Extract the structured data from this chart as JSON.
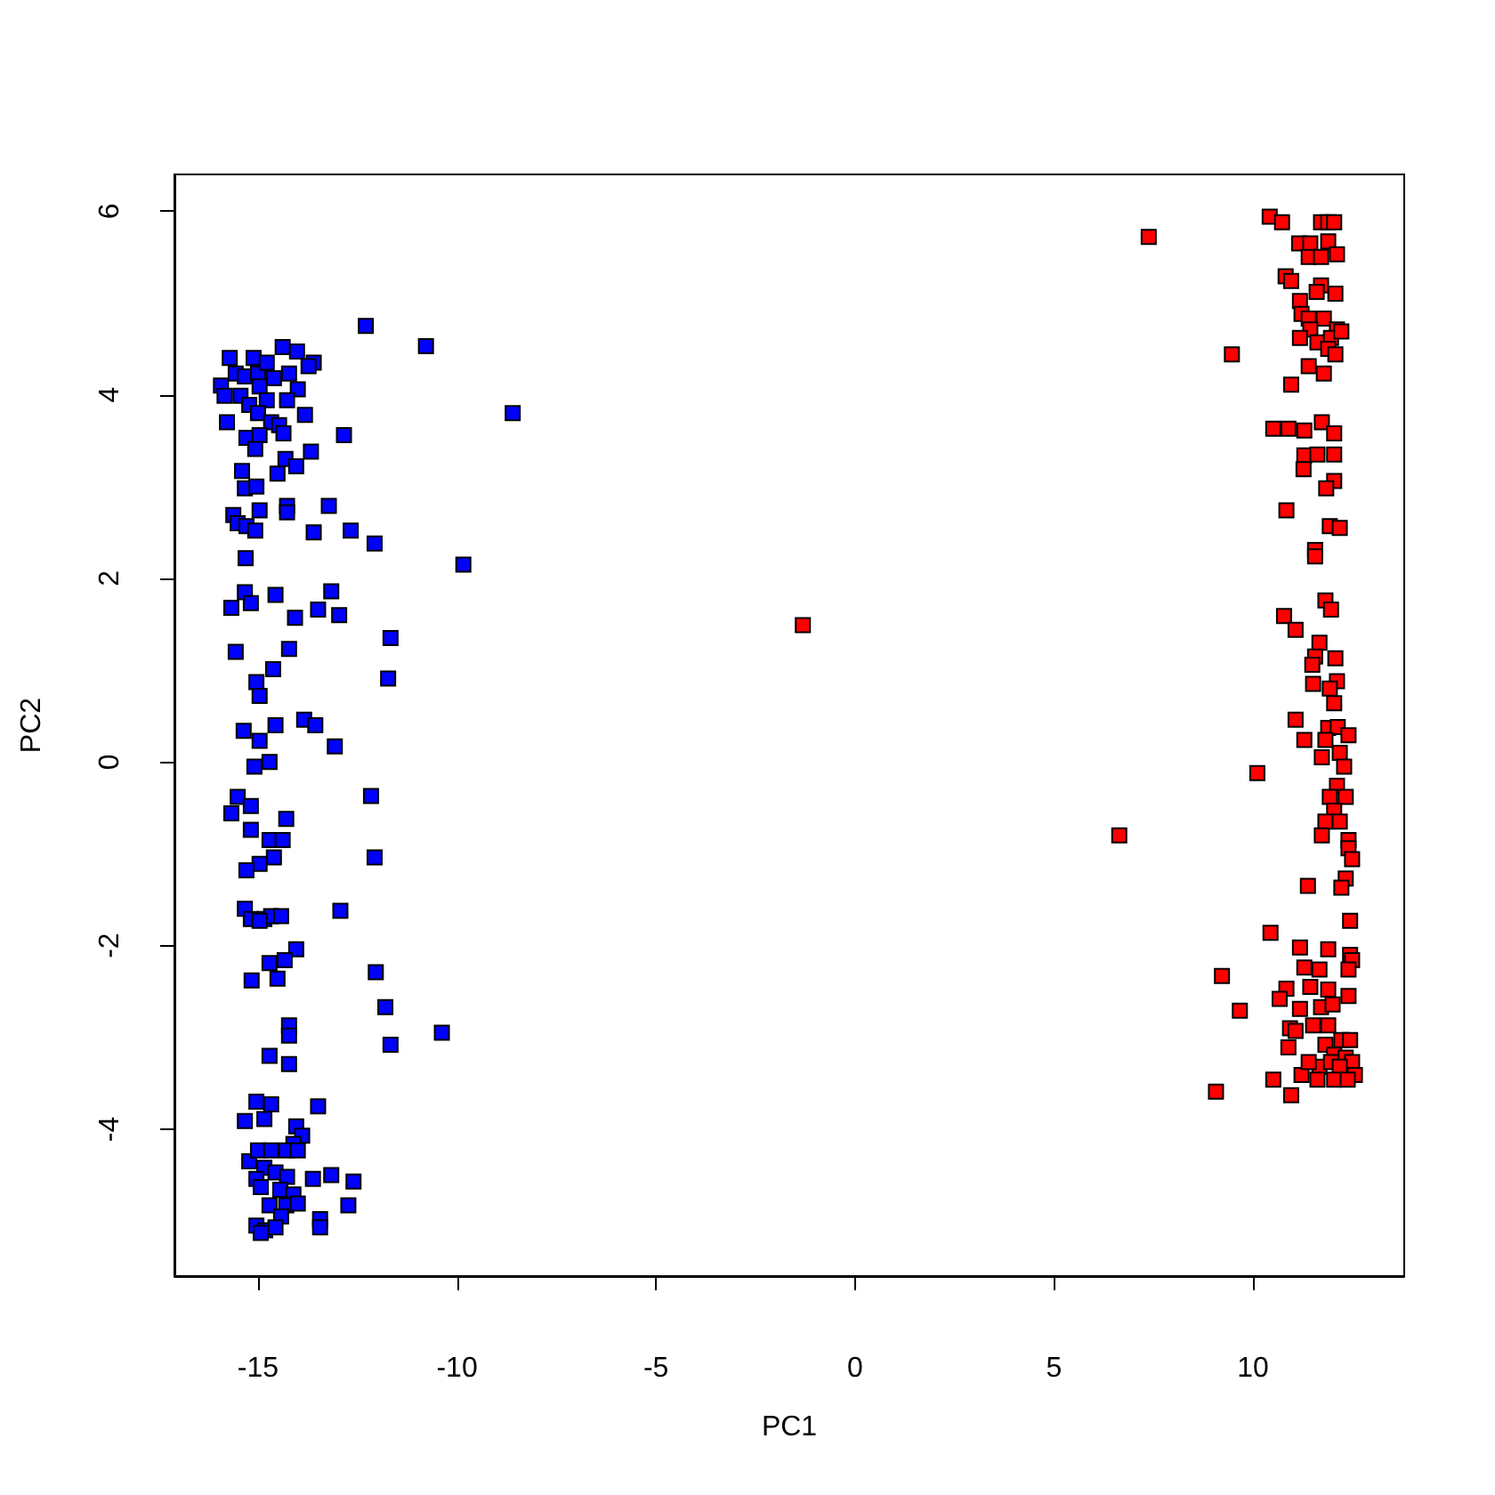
{
  "chart_data": {
    "type": "scatter",
    "xlabel": "PC1",
    "ylabel": "PC2",
    "xlim": [
      -17.1,
      13.8
    ],
    "ylim": [
      -5.6,
      6.4
    ],
    "xticks": [
      -15,
      -10,
      -5,
      0,
      5,
      10
    ],
    "yticks": [
      -4,
      -2,
      0,
      2,
      4,
      6
    ],
    "grid": false,
    "marker": "square",
    "series": [
      {
        "color": "#0000ff",
        "x": [
          -12.29,
          -10.78,
          -8.6,
          -15.71,
          -15.11,
          -14.38,
          -14.02,
          -13.6,
          -13.73,
          -15.93,
          -15.84,
          -15.78,
          -15.56,
          -15.33,
          -15.0,
          -14.78,
          -14.96,
          -14.6,
          -14.22,
          -14.0,
          -15.44,
          -15.22,
          -14.78,
          -14.27,
          -15.0,
          -14.67,
          -13.82,
          -15.29,
          -14.96,
          -14.47,
          -14.36,
          -15.07,
          -14.31,
          -13.67,
          -12.84,
          -15.4,
          -14.51,
          -14.04,
          -15.33,
          -15.04,
          -14.27,
          -14.27,
          -13.22,
          -15.62,
          -15.51,
          -15.29,
          -15.07,
          -14.96,
          -13.6,
          -12.67,
          -12.07,
          -9.84,
          -15.31,
          -15.67,
          -15.33,
          -15.18,
          -14.56,
          -14.07,
          -13.49,
          -13.16,
          -12.96,
          -11.67,
          -15.56,
          -14.22,
          -14.62,
          -15.04,
          -14.96,
          -11.73,
          -15.36,
          -14.56,
          -13.84,
          -13.56,
          -13.07,
          -14.96,
          -15.09,
          -14.71,
          -15.67,
          -15.51,
          -15.18,
          -15.18,
          -14.71,
          -14.38,
          -14.29,
          -14.6,
          -14.96,
          -15.29,
          -12.16,
          -12.07,
          -15.33,
          -15.18,
          -14.84,
          -14.67,
          -14.42,
          -14.96,
          -12.93,
          -14.04,
          -14.33,
          -14.71,
          -14.51,
          -15.16,
          -12.04,
          -11.8,
          -11.67,
          -10.38,
          -14.22,
          -14.22,
          -14.22,
          -14.71,
          -15.04,
          -14.67,
          -14.84,
          -15.33,
          -13.49,
          -14.04,
          -13.89,
          -14.11,
          -15.22,
          -15.0,
          -14.67,
          -14.29,
          -14.0,
          -14.84,
          -15.04,
          -14.56,
          -14.27,
          -13.62,
          -13.16,
          -12.6,
          -14.93,
          -14.44,
          -14.11,
          -14.71,
          -14.29,
          -14.0,
          -12.73,
          -14.42,
          -13.44,
          -13.44,
          -15.04,
          -14.82,
          -14.93,
          -14.56
        ],
        "values": [
          4.75,
          4.53,
          3.8,
          4.4,
          4.4,
          4.52,
          4.47,
          4.35,
          4.31,
          4.1,
          3.99,
          3.7,
          4.23,
          4.2,
          4.23,
          4.35,
          4.09,
          4.18,
          4.23,
          4.06,
          3.99,
          3.89,
          3.94,
          3.94,
          3.8,
          3.7,
          3.78,
          3.53,
          3.56,
          3.67,
          3.58,
          3.41,
          3.3,
          3.38,
          3.56,
          3.17,
          3.14,
          3.22,
          2.98,
          3.0,
          2.79,
          2.72,
          2.79,
          2.69,
          2.6,
          2.57,
          2.52,
          2.74,
          2.5,
          2.52,
          2.38,
          2.15,
          2.22,
          1.68,
          1.85,
          1.73,
          1.82,
          1.57,
          1.66,
          1.86,
          1.6,
          1.35,
          1.2,
          1.23,
          1.01,
          0.87,
          0.72,
          0.91,
          0.34,
          0.4,
          0.46,
          0.4,
          0.17,
          0.23,
          -0.05,
          0.0,
          -0.56,
          -0.38,
          -0.48,
          -0.74,
          -0.85,
          -0.85,
          -0.62,
          -1.04,
          -1.11,
          -1.18,
          -0.37,
          -1.04,
          -1.6,
          -1.71,
          -1.71,
          -1.68,
          -1.68,
          -1.73,
          -1.62,
          -2.04,
          -2.16,
          -2.19,
          -2.36,
          -2.38,
          -2.29,
          -2.67,
          -3.08,
          -2.95,
          -2.87,
          -2.98,
          -3.29,
          -3.2,
          -3.7,
          -3.73,
          -3.89,
          -3.91,
          -3.75,
          -3.97,
          -4.07,
          -4.16,
          -4.35,
          -4.23,
          -4.23,
          -4.23,
          -4.23,
          -4.42,
          -4.54,
          -4.47,
          -4.52,
          -4.54,
          -4.5,
          -4.57,
          -4.63,
          -4.66,
          -4.71,
          -4.83,
          -4.83,
          -4.81,
          -4.83,
          -4.95,
          -4.98,
          -5.07,
          -5.05,
          -5.1,
          -5.13,
          -5.07
        ]
      },
      {
        "color": "#ff0000",
        "x": [
          -1.31,
          7.38,
          6.64,
          10.42,
          10.73,
          11.16,
          11.44,
          11.71,
          11.89,
          12.04,
          11.4,
          11.89,
          11.71,
          12.11,
          10.82,
          10.96,
          11.71,
          12.07,
          11.6,
          11.18,
          11.22,
          11.4,
          11.78,
          12.11,
          11.44,
          11.18,
          11.62,
          11.96,
          12.22,
          11.89,
          12.07,
          11.4,
          11.78,
          9.47,
          10.96,
          10.51,
          10.89,
          11.29,
          11.73,
          12.04,
          11.29,
          11.62,
          12.04,
          11.27,
          12.04,
          11.84,
          10.84,
          11.93,
          12.18,
          11.56,
          11.56,
          11.82,
          11.96,
          10.78,
          11.07,
          11.67,
          11.56,
          12.07,
          11.49,
          11.51,
          12.11,
          11.93,
          12.04,
          11.07,
          11.89,
          12.13,
          12.4,
          11.29,
          11.82,
          12.18,
          11.73,
          12.29,
          10.11,
          12.11,
          11.93,
          12.33,
          12.04,
          11.82,
          12.18,
          11.73,
          12.4,
          12.4,
          12.49,
          12.33,
          12.22,
          11.38,
          12.44,
          10.44,
          11.18,
          11.89,
          12.44,
          12.49,
          12.4,
          11.29,
          11.67,
          9.22,
          10.84,
          11.44,
          11.89,
          12.4,
          10.67,
          11.18,
          11.71,
          12.0,
          9.67,
          11.51,
          10.93,
          11.07,
          11.89,
          12.22,
          12.44,
          11.82,
          10.89,
          12.04,
          12.33,
          11.67,
          11.96,
          12.49,
          12.18,
          11.22,
          11.62,
          12.04,
          12.56,
          12.38,
          10.51,
          10.96,
          9.07,
          11.4
        ],
        "values": [
          1.49,
          5.72,
          -0.8,
          5.94,
          5.88,
          5.65,
          5.65,
          5.88,
          5.88,
          5.88,
          5.5,
          5.67,
          5.5,
          5.53,
          5.29,
          5.24,
          5.19,
          5.1,
          5.12,
          5.02,
          4.88,
          4.83,
          4.83,
          4.71,
          4.71,
          4.62,
          4.57,
          4.62,
          4.69,
          4.5,
          4.44,
          4.31,
          4.23,
          4.44,
          4.11,
          3.63,
          3.63,
          3.61,
          3.7,
          3.58,
          3.34,
          3.35,
          3.35,
          3.19,
          3.06,
          2.98,
          2.74,
          2.57,
          2.55,
          2.31,
          2.24,
          1.76,
          1.66,
          1.59,
          1.44,
          1.3,
          1.15,
          1.13,
          1.06,
          0.85,
          0.88,
          0.8,
          0.64,
          0.46,
          0.37,
          0.38,
          0.29,
          0.24,
          0.24,
          0.1,
          0.05,
          -0.05,
          -0.12,
          -0.26,
          -0.38,
          -0.38,
          -0.53,
          -0.65,
          -0.65,
          -0.8,
          -0.85,
          -0.94,
          -1.06,
          -1.27,
          -1.37,
          -1.35,
          -1.73,
          -1.86,
          -2.02,
          -2.04,
          -2.1,
          -2.16,
          -2.26,
          -2.24,
          -2.26,
          -2.33,
          -2.47,
          -2.45,
          -2.48,
          -2.55,
          -2.58,
          -2.69,
          -2.67,
          -2.64,
          -2.71,
          -2.87,
          -2.9,
          -2.93,
          -2.87,
          -3.03,
          -3.03,
          -3.08,
          -3.11,
          -3.19,
          -3.22,
          -3.32,
          -3.27,
          -3.27,
          -3.32,
          -3.41,
          -3.46,
          -3.46,
          -3.41,
          -3.46,
          -3.46,
          -3.63,
          -3.59,
          -3.27
        ]
      }
    ]
  }
}
